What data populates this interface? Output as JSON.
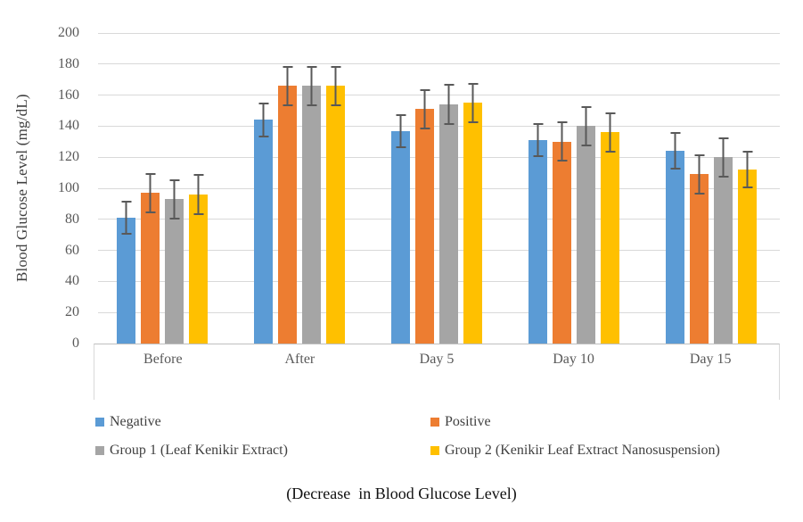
{
  "chart_data": {
    "type": "bar",
    "title": "",
    "categories": [
      "Before",
      "After",
      "Day 5",
      "Day 10",
      "Day 15"
    ],
    "series": [
      {
        "name": "Negative",
        "color": "#5B9BD5",
        "values": [
          81,
          144,
          137,
          131,
          124
        ],
        "errors": [
          11,
          11,
          11,
          11,
          12
        ]
      },
      {
        "name": "Positive",
        "color": "#ED7D31",
        "values": [
          97,
          166,
          151,
          130,
          109
        ],
        "errors": [
          13,
          13,
          13,
          13,
          13
        ]
      },
      {
        "name": "Group 1 (Leaf Kenikir Extract)",
        "color": "#A5A5A5",
        "values": [
          93,
          166,
          154,
          140,
          120
        ],
        "errors": [
          13,
          13,
          13,
          13,
          13
        ]
      },
      {
        "name": "Group 2 (Kenikir Leaf Extract Nanosuspension)",
        "color": "#FFC000",
        "values": [
          96,
          166,
          155,
          136,
          112
        ],
        "errors": [
          13,
          13,
          13,
          13,
          12
        ]
      }
    ],
    "xlabel": "",
    "ylabel": "Blood Glucose Level (mg/dL)",
    "ylim": [
      0,
      200
    ],
    "ytick_step": 20,
    "grid": true,
    "legend_position": "bottom",
    "error_bar_color": "#595959",
    "gridline_color": "#D9D9D9",
    "caption": "(Decrease  in Blood Glucose Level)"
  }
}
